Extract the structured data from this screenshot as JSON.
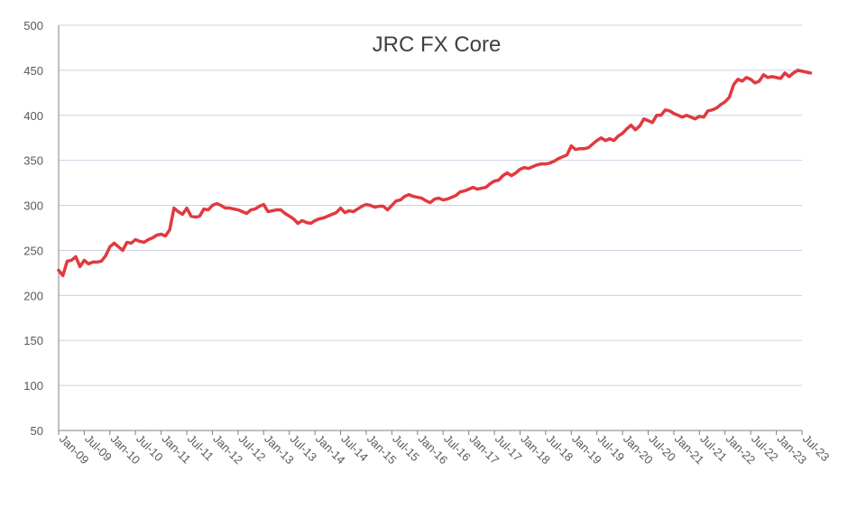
{
  "chart_data": {
    "type": "line",
    "title": "JRC FX Core",
    "xlabel": "",
    "ylabel": "",
    "ylim": [
      50,
      500
    ],
    "yticks": [
      50,
      100,
      150,
      200,
      250,
      300,
      350,
      400,
      450,
      500
    ],
    "grid": true,
    "legend": "none",
    "line_color": "#e03a3e",
    "x_tick_labels": [
      "Jan-09",
      "Jul-09",
      "Jan-10",
      "Jul-10",
      "Jan-11",
      "Jul-11",
      "Jan-12",
      "Jul-12",
      "Jan-13",
      "Jul-13",
      "Jan-14",
      "Jul-14",
      "Jan-15",
      "Jul-15",
      "Jan-16",
      "Jul-16",
      "Jan-17",
      "Jul-17",
      "Jan-18",
      "Jul-18",
      "Jan-19",
      "Jul-19",
      "Jan-20",
      "Jul-20",
      "Jan-21",
      "Jul-21",
      "Jan-22",
      "Jul-22",
      "Jan-23",
      "Jul-23"
    ],
    "series": [
      {
        "x_start": "2009-01",
        "frequency": "monthly",
        "values": [
          228,
          222,
          238,
          239,
          243,
          232,
          239,
          235,
          237,
          237,
          238,
          244,
          254,
          258,
          254,
          250,
          259,
          258,
          262,
          260,
          259,
          262,
          264,
          267,
          268,
          266,
          273,
          297,
          293,
          290,
          297,
          288,
          287,
          288,
          296,
          295,
          300,
          302,
          300,
          297,
          297,
          296,
          295,
          293,
          291,
          295,
          296,
          299,
          301,
          293,
          294,
          295,
          295,
          291,
          288,
          285,
          280,
          283,
          281,
          280,
          283,
          285,
          286,
          288,
          290,
          292,
          297,
          292,
          294,
          293,
          296,
          299,
          301,
          300,
          298,
          299,
          299,
          295,
          300,
          305,
          306,
          310,
          312,
          310,
          309,
          308,
          305,
          303,
          307,
          308,
          306,
          307,
          309,
          311,
          315,
          316,
          318,
          320,
          318,
          319,
          320,
          324,
          327,
          328,
          333,
          336,
          333,
          336,
          340,
          342,
          341,
          343,
          345,
          346,
          346,
          347,
          349,
          352,
          354,
          356,
          366,
          362,
          363,
          363,
          364,
          368,
          372,
          375,
          372,
          374,
          372,
          377,
          380,
          385,
          389,
          384,
          388,
          396,
          394,
          392,
          400,
          400,
          406,
          405,
          402,
          400,
          398,
          400,
          398,
          396,
          399,
          398,
          405,
          406,
          408,
          412,
          415,
          420,
          434,
          440,
          438,
          442,
          440,
          436,
          438,
          445,
          442,
          443,
          442,
          441,
          447,
          443,
          447,
          450,
          449,
          448,
          447
        ]
      }
    ]
  }
}
